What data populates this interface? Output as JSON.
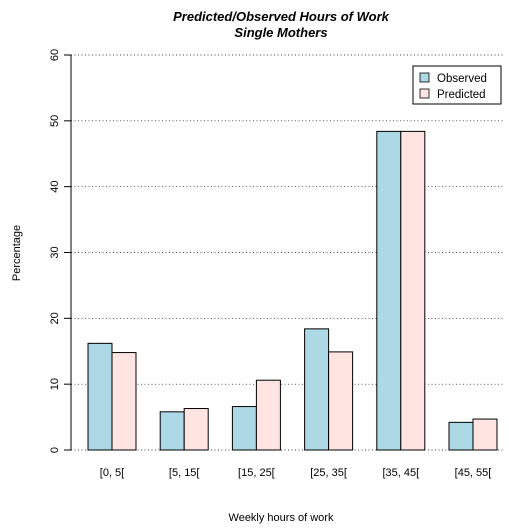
{
  "chart_data": {
    "type": "bar",
    "title": "Predicted/Observed Hours of Work",
    "subtitle": "Single Mothers",
    "xlabel": "Weekly hours of work",
    "ylabel": "Percentage",
    "categories": [
      "[0, 5[",
      "[5, 15[",
      "[15, 25[",
      "[25, 35[",
      "[35, 45[",
      "[45, 55["
    ],
    "series": [
      {
        "name": "Observed",
        "color": "#add8e6",
        "values": [
          16.2,
          5.8,
          6.6,
          18.4,
          48.4,
          4.2
        ]
      },
      {
        "name": "Predicted",
        "color": "#ffe4e1",
        "values": [
          14.8,
          6.3,
          10.6,
          14.9,
          48.4,
          4.7
        ]
      }
    ],
    "ylim": [
      0,
      60
    ],
    "yticks": [
      "0",
      "10",
      "20",
      "30",
      "40",
      "50",
      "60"
    ],
    "grid": "dotted horizontal",
    "legend_position": "top-right"
  }
}
